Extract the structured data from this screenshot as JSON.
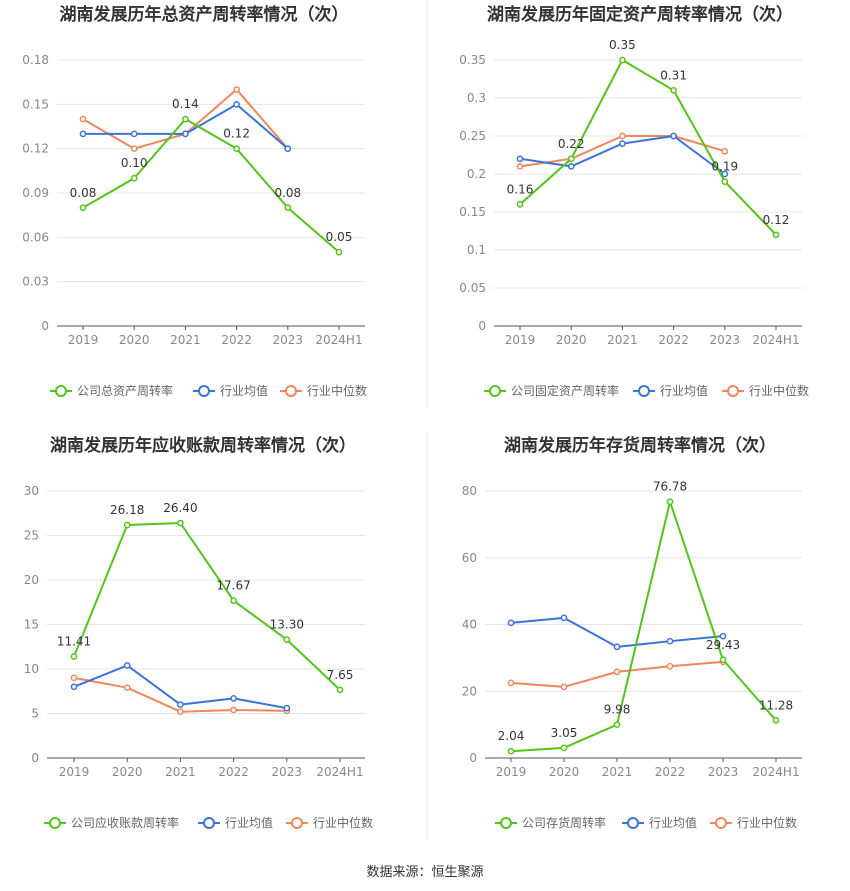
{
  "source_text": "数据来源：恒生聚源",
  "colors": {
    "company": "#52c41a",
    "industry_avg": "#3b73d9",
    "industry_median": "#f0875c",
    "grid": "#e6e6e6",
    "axis": "#555555",
    "tick_text": "#888888",
    "label_text": "#333333",
    "title_text": "#333333"
  },
  "chart_data": [
    {
      "type": "line",
      "title": "湖南发展历年总资产周转率情况（次）",
      "categories": [
        "2019",
        "2020",
        "2021",
        "2022",
        "2023",
        "2024H1"
      ],
      "ylim": [
        0,
        0.18
      ],
      "yticks": [
        "0",
        "0.03",
        "0.06",
        "0.09",
        "0.12",
        "0.15",
        "0.18"
      ],
      "grid": true,
      "legend": "bottom",
      "series": [
        {
          "name": "公司总资产周转率",
          "values": [
            0.08,
            0.1,
            0.14,
            0.12,
            0.08,
            0.05
          ],
          "labels": [
            "0.08",
            "0.10",
            "0.14",
            "0.12",
            "0.08",
            "0.05"
          ]
        },
        {
          "name": "行业均值",
          "values": [
            0.13,
            0.13,
            0.13,
            0.15,
            0.12,
            null
          ]
        },
        {
          "name": "行业中位数",
          "values": [
            0.14,
            0.12,
            0.13,
            0.16,
            0.12,
            null
          ]
        }
      ]
    },
    {
      "type": "line",
      "title": "湖南发展历年固定资产周转率情况（次）",
      "categories": [
        "2019",
        "2020",
        "2021",
        "2022",
        "2023",
        "2024H1"
      ],
      "ylim": [
        0,
        0.35
      ],
      "yticks": [
        "0",
        "0.05",
        "0.1",
        "0.15",
        "0.2",
        "0.25",
        "0.3",
        "0.35"
      ],
      "grid": true,
      "legend": "bottom",
      "series": [
        {
          "name": "公司固定资产周转率",
          "values": [
            0.16,
            0.22,
            0.35,
            0.31,
            0.19,
            0.12
          ],
          "labels": [
            "0.16",
            "0.22",
            "0.35",
            "0.31",
            "0.19",
            "0.12"
          ]
        },
        {
          "name": "行业均值",
          "values": [
            0.22,
            0.21,
            0.24,
            0.25,
            0.2,
            null
          ]
        },
        {
          "name": "行业中位数",
          "values": [
            0.21,
            0.22,
            0.25,
            0.25,
            0.23,
            null
          ]
        }
      ]
    },
    {
      "type": "line",
      "title": "湖南发展历年应收账款周转率情况（次）",
      "categories": [
        "2019",
        "2020",
        "2021",
        "2022",
        "2023",
        "2024H1"
      ],
      "ylim": [
        0,
        30
      ],
      "yticks": [
        "0",
        "5",
        "10",
        "15",
        "20",
        "25",
        "30"
      ],
      "grid": true,
      "legend": "bottom",
      "series": [
        {
          "name": "公司应收账款周转率",
          "values": [
            11.41,
            26.18,
            26.4,
            17.67,
            13.3,
            7.65
          ],
          "labels": [
            "11.41",
            "26.18",
            "26.40",
            "17.67",
            "13.30",
            "7.65"
          ]
        },
        {
          "name": "行业均值",
          "values": [
            8.0,
            10.4,
            6.0,
            6.7,
            5.6,
            null
          ]
        },
        {
          "name": "行业中位数",
          "values": [
            9.0,
            7.9,
            5.2,
            5.4,
            5.3,
            null
          ]
        }
      ]
    },
    {
      "type": "line",
      "title": "湖南发展历年存货周转率情况（次）",
      "categories": [
        "2019",
        "2020",
        "2021",
        "2022",
        "2023",
        "2024H1"
      ],
      "ylim": [
        0,
        80
      ],
      "yticks": [
        "0",
        "20",
        "40",
        "60",
        "80"
      ],
      "grid": true,
      "legend": "bottom",
      "series": [
        {
          "name": "公司存货周转率",
          "values": [
            2.04,
            3.05,
            9.98,
            76.78,
            29.43,
            11.28
          ],
          "labels": [
            "2.04",
            "3.05",
            "9.98",
            "76.78",
            "29.43",
            "11.28"
          ]
        },
        {
          "name": "行业均值",
          "values": [
            40.5,
            42.0,
            33.3,
            35.0,
            36.5,
            null
          ]
        },
        {
          "name": "行业中位数",
          "values": [
            22.5,
            21.3,
            25.8,
            27.5,
            28.8,
            null
          ]
        }
      ]
    }
  ]
}
